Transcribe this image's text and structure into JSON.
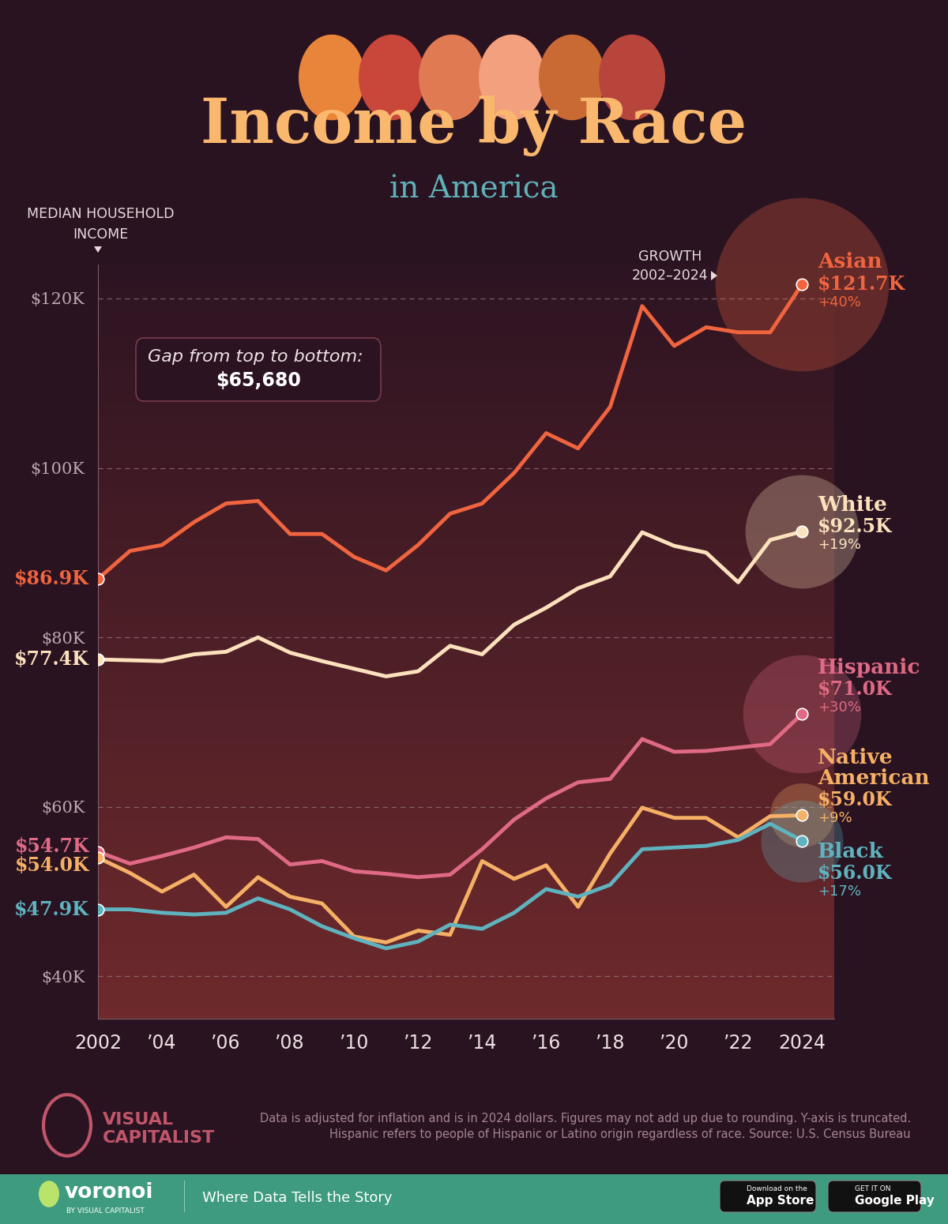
{
  "chart_data": {
    "type": "line",
    "title": "Income by Race",
    "subtitle": "in America",
    "y_label": "MEDIAN HOUSEHOLD\nINCOME",
    "growth_label": "GROWTH\n2002–2024",
    "annotation": {
      "title": "Gap from top to bottom:",
      "value": "$65,680"
    },
    "x": [
      2002,
      2003,
      2004,
      2005,
      2006,
      2007,
      2008,
      2009,
      2010,
      2011,
      2012,
      2013,
      2014,
      2015,
      2016,
      2017,
      2018,
      2019,
      2020,
      2021,
      2022,
      2023,
      2024
    ],
    "xlim": [
      2002,
      2025
    ],
    "xticks": [
      2002,
      {
        "value": 2004,
        "label": "’04"
      },
      {
        "value": 2006,
        "label": "’06"
      },
      {
        "value": 2008,
        "label": "’08"
      },
      {
        "value": 2010,
        "label": "’10"
      },
      {
        "value": 2012,
        "label": "’12"
      },
      {
        "value": 2014,
        "label": "’14"
      },
      {
        "value": 2016,
        "label": "’16"
      },
      {
        "value": 2018,
        "label": "’18"
      },
      {
        "value": 2020,
        "label": "’20"
      },
      {
        "value": 2022,
        "label": "’22"
      },
      2024
    ],
    "ylim": [
      35000,
      124000
    ],
    "yticks": [
      {
        "value": 40000,
        "label": "$40K"
      },
      {
        "value": 60000,
        "label": "$60K"
      },
      {
        "value": 80000,
        "label": "$80K"
      },
      {
        "value": 100000,
        "label": "$100K"
      },
      {
        "value": 120000,
        "label": "$120K"
      }
    ],
    "grid": true,
    "marker": "circle",
    "series": [
      {
        "name": "Asian",
        "color": "#f0643f",
        "growth": "+40%",
        "values": [
          86900,
          90200,
          90900,
          93600,
          95800,
          96100,
          92200,
          92200,
          89500,
          87900,
          90900,
          94600,
          95800,
          99400,
          104100,
          102300,
          107200,
          119100,
          114400,
          116600,
          116000,
          116000,
          121700
        ],
        "value_labels": [
          "$86.9K",
          null,
          null,
          null,
          null,
          null,
          null,
          null,
          null,
          null,
          null,
          null,
          null,
          null,
          null,
          null,
          null,
          null,
          null,
          null,
          null,
          null,
          "$121.7K"
        ]
      },
      {
        "name": "White",
        "color": "#fce1bd",
        "growth": "+19%",
        "values": [
          77400,
          77300,
          77200,
          78000,
          78300,
          80000,
          78200,
          77200,
          76300,
          75400,
          76000,
          79000,
          78000,
          81500,
          83500,
          85800,
          87200,
          92400,
          90800,
          90000,
          86500,
          91500,
          92500
        ],
        "value_labels": [
          "$77.4K",
          null,
          null,
          null,
          null,
          null,
          null,
          null,
          null,
          null,
          null,
          null,
          null,
          null,
          null,
          null,
          null,
          null,
          null,
          null,
          null,
          null,
          "$92.5K"
        ]
      },
      {
        "name": "Hispanic",
        "color": "#e06a86",
        "growth": "+30%",
        "values": [
          54700,
          53300,
          54200,
          55200,
          56400,
          56200,
          53200,
          53600,
          52400,
          52100,
          51700,
          52000,
          55000,
          58500,
          61000,
          62900,
          63300,
          68000,
          66500,
          66600,
          67000,
          67400,
          71000
        ],
        "value_labels": [
          "$54.7K",
          null,
          null,
          null,
          null,
          null,
          null,
          null,
          null,
          null,
          null,
          null,
          null,
          null,
          null,
          null,
          null,
          null,
          null,
          null,
          null,
          null,
          "$71.0K"
        ]
      },
      {
        "name": "Native American",
        "color": "#f5b066",
        "growth": "+9%",
        "values": [
          54000,
          52200,
          50000,
          52000,
          48200,
          51700,
          49400,
          48600,
          44700,
          44000,
          45400,
          44900,
          53600,
          51500,
          53100,
          48200,
          54500,
          59900,
          58700,
          58700,
          56400,
          58900,
          59000
        ],
        "value_labels": [
          "$54.0K",
          null,
          null,
          null,
          null,
          null,
          null,
          null,
          null,
          null,
          null,
          null,
          null,
          null,
          null,
          null,
          null,
          null,
          null,
          null,
          null,
          null,
          "$59.0K"
        ]
      },
      {
        "name": "Black",
        "color": "#5fb3bf",
        "growth": "+17%",
        "values": [
          47900,
          47900,
          47500,
          47300,
          47500,
          49200,
          47900,
          45900,
          44500,
          43300,
          44100,
          46100,
          45600,
          47500,
          50300,
          49400,
          50800,
          55000,
          55200,
          55400,
          56100,
          58000,
          56000
        ],
        "value_labels": [
          "$47.9K",
          null,
          null,
          null,
          null,
          null,
          null,
          null,
          null,
          null,
          null,
          null,
          null,
          null,
          null,
          null,
          null,
          null,
          null,
          null,
          null,
          null,
          "$56.0K"
        ]
      }
    ]
  },
  "footer": {
    "notes": [
      "Data is adjusted for inflation and is in 2024 dollars. Figures may not add up due to rounding. Y-axis is truncated.",
      "Hispanic refers to people of Hispanic or Latino origin regardless of race. Source: U.S. Census Bureau"
    ],
    "logo": [
      "VISUAL",
      "CAPITALIST"
    ],
    "brand": "voronoi",
    "brand_sub": "BY VISUAL CAPITALIST",
    "tagline": "Where Data Tells the Story",
    "buttons": [
      [
        "Download on the",
        "App Store"
      ],
      [
        "GET IT ON",
        "Google Play"
      ]
    ]
  }
}
